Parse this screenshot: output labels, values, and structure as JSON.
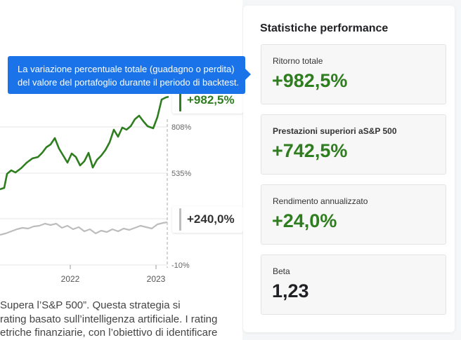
{
  "chart": {
    "y_tick_labels": [
      "808%",
      "535%",
      "-10%"
    ],
    "x_tick_labels": [
      "2022",
      "2023"
    ],
    "strategy_value": "+982,5%",
    "sp500_value": "+240,0%"
  },
  "colors": {
    "strategy": "#2e7d1e",
    "sp500": "#bdbdbd",
    "tooltip": "#1a73e8"
  },
  "tooltip": {
    "line1": "La variazione percentuale totale (guadagno o perdita)",
    "line2": "del valore del portafoglio durante il periodo di backtest."
  },
  "description": {
    "line1": "Supera l’S&P 500”. Questa strategia si",
    "line2": "rating basato sull’intelligenza artificiale. I rating",
    "line3": "etriche finanziarie, con l’obiettivo di identificare"
  },
  "panel": {
    "title": "Statistiche performance",
    "stats": [
      {
        "label": "Ritorno totale",
        "value": "+982,5%"
      },
      {
        "label": "Prestazioni superiori aS&P 500",
        "value": "+742,5%"
      },
      {
        "label": "Rendimento annualizzato",
        "value": "+24,0%"
      },
      {
        "label": "Beta",
        "value": "1,23"
      }
    ]
  }
}
